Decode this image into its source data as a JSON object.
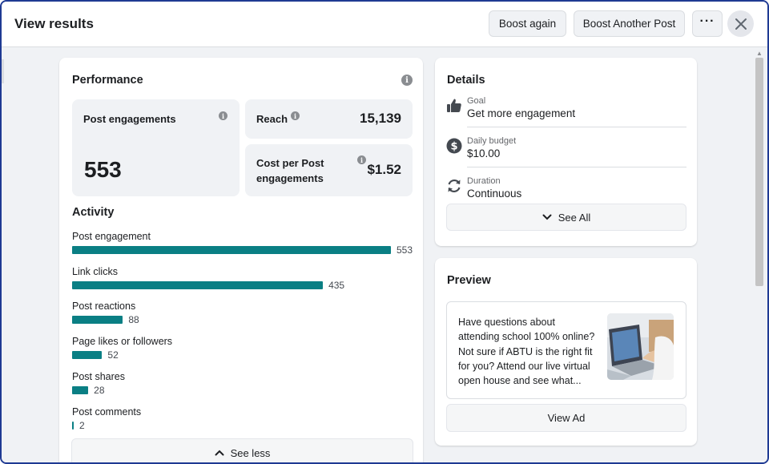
{
  "header": {
    "title": "View results",
    "boost_again": "Boost again",
    "boost_another": "Boost Another Post",
    "more": "···"
  },
  "performance": {
    "title": "Performance",
    "post_engagements": {
      "label": "Post engagements",
      "value": "553"
    },
    "reach": {
      "label": "Reach",
      "value": "15,139"
    },
    "cost": {
      "label_line1": "Cost per Post",
      "label_line2": "engagements",
      "value": "$1.52"
    }
  },
  "activity": {
    "title": "Activity",
    "max": 553,
    "items": [
      {
        "label": "Post engagement",
        "value": 553,
        "display": "553"
      },
      {
        "label": "Link clicks",
        "value": 435,
        "display": "435"
      },
      {
        "label": "Post reactions",
        "value": 88,
        "display": "88"
      },
      {
        "label": "Page likes or followers",
        "value": 52,
        "display": "52"
      },
      {
        "label": "Post shares",
        "value": 28,
        "display": "28"
      },
      {
        "label": "Post comments",
        "value": 2,
        "display": "2"
      }
    ],
    "see_less": "See less"
  },
  "details": {
    "title": "Details",
    "rows": [
      {
        "icon": "thumbs-up-icon",
        "label": "Goal",
        "value": "Get more engagement"
      },
      {
        "icon": "dollar-icon",
        "label": "Daily budget",
        "value": "$10.00"
      },
      {
        "icon": "refresh-icon",
        "label": "Duration",
        "value": "Continuous"
      }
    ],
    "see_all": "See All"
  },
  "preview": {
    "title": "Preview",
    "text_lines": [
      "Have questions about",
      "attending school 100% online?",
      "Not sure if ABTU is the right fit",
      "for you? Attend our live virtual",
      "open house and see what..."
    ],
    "view_ad": "View Ad"
  },
  "colors": {
    "bar": "#0a7f84",
    "frame_border": "#1f3a93",
    "background": "#f0f2f5"
  }
}
